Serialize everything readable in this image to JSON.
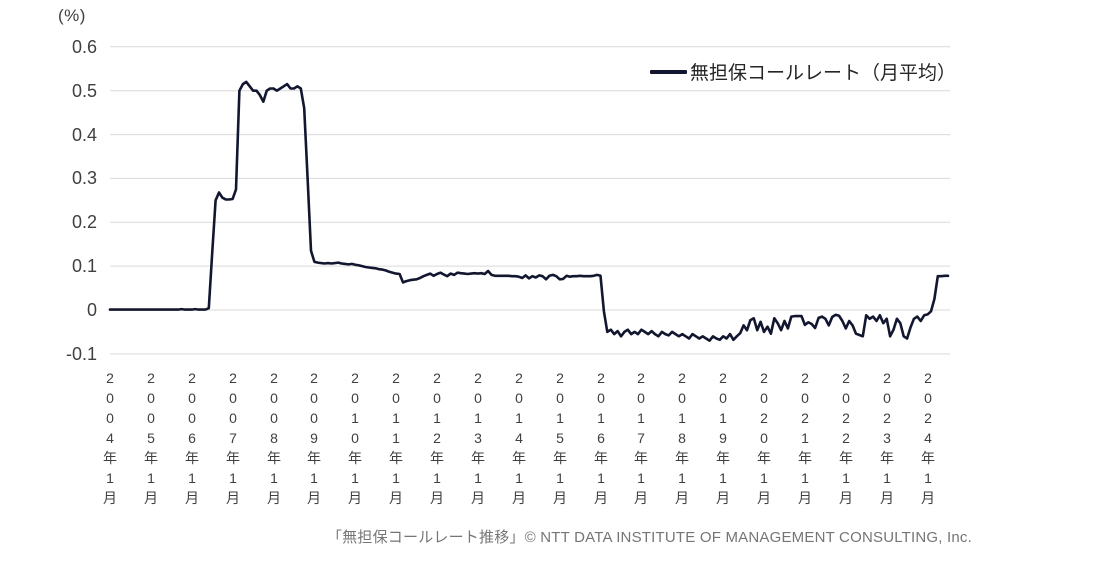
{
  "axis_unit_label": "(%)",
  "legend": {
    "label": "無担保コールレート（月平均）"
  },
  "footer": {
    "text": "「無担保コールレート推移」© NTT DATA INSTITUTE OF MANAGEMENT CONSULTING, Inc."
  },
  "chart_data": {
    "type": "line",
    "title": "無担保コールレート推移",
    "series_name": "無担保コールレート（月平均）",
    "unit": "%",
    "frequency": "monthly",
    "x_start": "2004-01",
    "x_end": "2024-07",
    "ylim": [
      -0.1,
      0.6
    ],
    "grid": true,
    "legend_position": "top-right",
    "line_color": "#12172f",
    "grid_color": "#d9d9d9",
    "axis_text_color": "#404040",
    "yticks": [
      0.6,
      0.5,
      0.4,
      0.3,
      0.2,
      0.1,
      0,
      -0.1
    ],
    "ytick_labels": [
      "0.6",
      "0.5",
      "0.4",
      "0.3",
      "0.2",
      "0.1",
      "0",
      "-0.1"
    ],
    "xtick_labels": [
      "2004年1月",
      "2005年1月",
      "2006年1月",
      "2007年1月",
      "2008年1月",
      "2009年1月",
      "2010年1月",
      "2011年1月",
      "2012年1月",
      "2013年1月",
      "2014年1月",
      "2015年1月",
      "2016年1月",
      "2017年1月",
      "2018年1月",
      "2019年1月",
      "2020年1月",
      "2021年1月",
      "2022年1月",
      "2023年1月",
      "2024年1月"
    ],
    "xtick_month_index": [
      0,
      12,
      24,
      36,
      48,
      60,
      72,
      84,
      96,
      108,
      120,
      132,
      144,
      156,
      168,
      180,
      192,
      204,
      216,
      228,
      240
    ],
    "values": [
      0.001,
      0.001,
      0.001,
      0.001,
      0.001,
      0.001,
      0.001,
      0.001,
      0.001,
      0.001,
      0.001,
      0.001,
      0.001,
      0.001,
      0.001,
      0.001,
      0.001,
      0.001,
      0.001,
      0.001,
      0.001,
      0.002,
      0.001,
      0.001,
      0.001,
      0.002,
      0.001,
      0.001,
      0.001,
      0.004,
      0.13,
      0.25,
      0.268,
      0.256,
      0.252,
      0.252,
      0.253,
      0.275,
      0.5,
      0.515,
      0.52,
      0.51,
      0.5,
      0.5,
      0.49,
      0.475,
      0.5,
      0.505,
      0.505,
      0.5,
      0.505,
      0.51,
      0.515,
      0.505,
      0.505,
      0.51,
      0.505,
      0.46,
      0.3,
      0.135,
      0.11,
      0.108,
      0.107,
      0.106,
      0.107,
      0.106,
      0.107,
      0.108,
      0.106,
      0.105,
      0.104,
      0.105,
      0.103,
      0.102,
      0.1,
      0.098,
      0.097,
      0.096,
      0.095,
      0.093,
      0.092,
      0.09,
      0.087,
      0.085,
      0.083,
      0.082,
      0.063,
      0.066,
      0.068,
      0.069,
      0.07,
      0.073,
      0.077,
      0.08,
      0.083,
      0.078,
      0.082,
      0.085,
      0.081,
      0.077,
      0.083,
      0.08,
      0.085,
      0.084,
      0.083,
      0.082,
      0.083,
      0.084,
      0.083,
      0.084,
      0.082,
      0.089,
      0.08,
      0.078,
      0.078,
      0.078,
      0.078,
      0.078,
      0.077,
      0.077,
      0.076,
      0.073,
      0.079,
      0.072,
      0.077,
      0.074,
      0.079,
      0.077,
      0.07,
      0.078,
      0.08,
      0.077,
      0.07,
      0.071,
      0.078,
      0.076,
      0.077,
      0.077,
      0.078,
      0.077,
      0.077,
      0.077,
      0.078,
      0.08,
      0.078,
      -0.003,
      -0.05,
      -0.045,
      -0.055,
      -0.048,
      -0.06,
      -0.05,
      -0.045,
      -0.055,
      -0.05,
      -0.055,
      -0.045,
      -0.05,
      -0.055,
      -0.048,
      -0.055,
      -0.06,
      -0.05,
      -0.055,
      -0.058,
      -0.05,
      -0.055,
      -0.06,
      -0.055,
      -0.06,
      -0.065,
      -0.055,
      -0.06,
      -0.065,
      -0.06,
      -0.065,
      -0.07,
      -0.06,
      -0.065,
      -0.068,
      -0.06,
      -0.065,
      -0.055,
      -0.068,
      -0.06,
      -0.053,
      -0.035,
      -0.046,
      -0.023,
      -0.019,
      -0.046,
      -0.027,
      -0.05,
      -0.038,
      -0.054,
      -0.019,
      -0.03,
      -0.046,
      -0.025,
      -0.042,
      -0.015,
      -0.014,
      -0.014,
      -0.014,
      -0.034,
      -0.028,
      -0.032,
      -0.041,
      -0.018,
      -0.015,
      -0.02,
      -0.035,
      -0.016,
      -0.011,
      -0.013,
      -0.025,
      -0.042,
      -0.025,
      -0.035,
      -0.054,
      -0.057,
      -0.06,
      -0.012,
      -0.02,
      -0.015,
      -0.025,
      -0.012,
      -0.03,
      -0.02,
      -0.06,
      -0.045,
      -0.02,
      -0.03,
      -0.06,
      -0.065,
      -0.04,
      -0.02,
      -0.015,
      -0.025,
      -0.012,
      -0.01,
      -0.003,
      0.025,
      0.077,
      0.077,
      0.078,
      0.078
    ]
  }
}
